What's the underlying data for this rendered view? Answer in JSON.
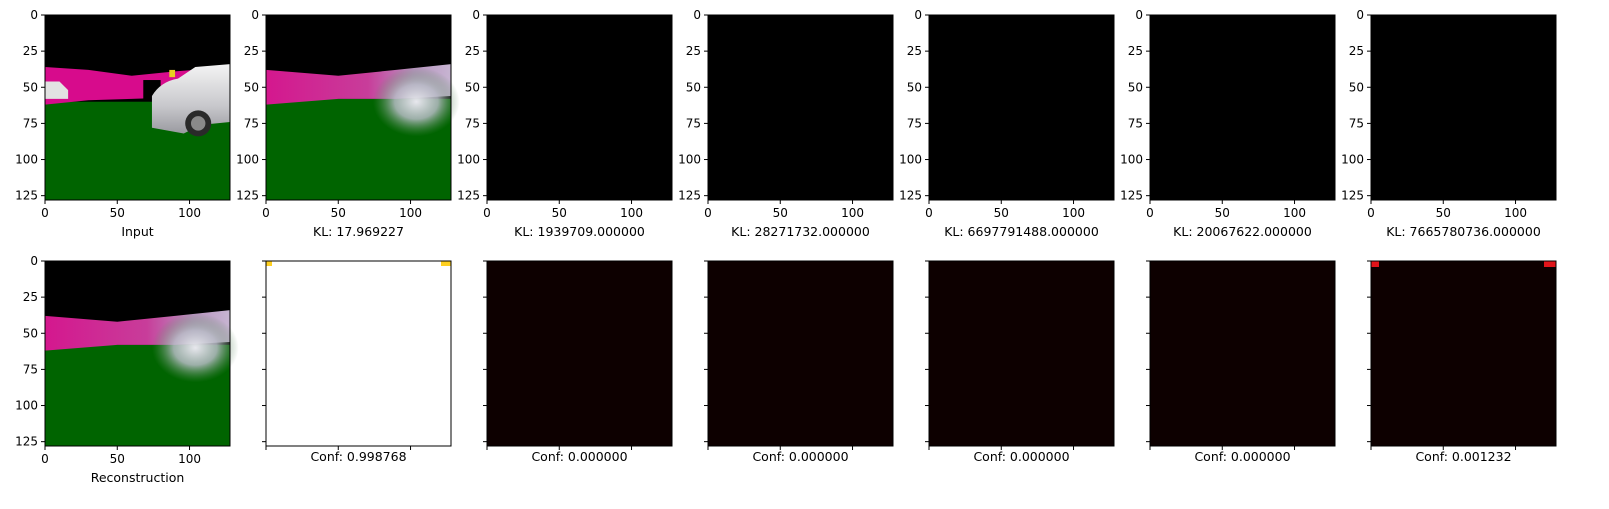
{
  "chart_data": [
    {
      "type": "image",
      "content": "scene-input",
      "caption": "Input",
      "x_ticks": [
        "0",
        "50",
        "100"
      ],
      "y_ticks": [
        "0",
        "25",
        "50",
        "75",
        "100",
        "125"
      ],
      "xlim": [
        0,
        128
      ],
      "ylim": [
        128,
        0
      ]
    },
    {
      "type": "image",
      "content": "scene-reconstruction",
      "caption": "KL: 17.969227",
      "x_ticks": [
        "0",
        "50",
        "100"
      ],
      "y_ticks": [
        "0",
        "25",
        "50",
        "75",
        "100",
        "125"
      ],
      "xlim": [
        0,
        128
      ],
      "ylim": [
        128,
        0
      ]
    },
    {
      "type": "image",
      "content": "black",
      "caption": "KL: 1939709.000000",
      "x_ticks": [
        "0",
        "50",
        "100"
      ],
      "y_ticks": [
        "0",
        "25",
        "50",
        "75",
        "100",
        "125"
      ],
      "xlim": [
        0,
        128
      ],
      "ylim": [
        128,
        0
      ]
    },
    {
      "type": "image",
      "content": "black",
      "caption": "KL: 28271732.000000",
      "x_ticks": [
        "0",
        "50",
        "100"
      ],
      "y_ticks": [
        "0",
        "25",
        "50",
        "75",
        "100",
        "125"
      ],
      "xlim": [
        0,
        128
      ],
      "ylim": [
        128,
        0
      ]
    },
    {
      "type": "image",
      "content": "black",
      "caption": "KL: 6697791488.000000",
      "x_ticks": [
        "0",
        "50",
        "100"
      ],
      "y_ticks": [
        "0",
        "25",
        "50",
        "75",
        "100",
        "125"
      ],
      "xlim": [
        0,
        128
      ],
      "ylim": [
        128,
        0
      ]
    },
    {
      "type": "image",
      "content": "black",
      "caption": "KL: 20067622.000000",
      "x_ticks": [
        "0",
        "50",
        "100"
      ],
      "y_ticks": [
        "0",
        "25",
        "50",
        "75",
        "100",
        "125"
      ],
      "xlim": [
        0,
        128
      ],
      "ylim": [
        128,
        0
      ]
    },
    {
      "type": "image",
      "content": "black",
      "caption": "KL: 7665780736.000000",
      "x_ticks": [
        "0",
        "50",
        "100"
      ],
      "y_ticks": [
        "0",
        "25",
        "50",
        "75",
        "100",
        "125"
      ],
      "xlim": [
        0,
        128
      ],
      "ylim": [
        128,
        0
      ]
    },
    {
      "type": "image",
      "content": "scene-reconstruction",
      "caption": "Reconstruction",
      "x_ticks": [
        "0",
        "50",
        "100"
      ],
      "y_ticks": [
        "0",
        "25",
        "50",
        "75",
        "100",
        "125"
      ],
      "xlim": [
        0,
        128
      ],
      "ylim": [
        128,
        0
      ]
    },
    {
      "type": "heatmap",
      "content": "confidence",
      "caption": "Conf: 0.998768",
      "confidence": 0.998768,
      "fill_color": "#ffffff",
      "hot_color": "#ffd020",
      "tick_labels": false
    },
    {
      "type": "heatmap",
      "content": "confidence",
      "caption": "Conf: 0.000000",
      "confidence": 0.0,
      "fill_color": "#0d0000",
      "tick_labels": false
    },
    {
      "type": "heatmap",
      "content": "confidence",
      "caption": "Conf: 0.000000",
      "confidence": 0.0,
      "fill_color": "#0d0000",
      "tick_labels": false
    },
    {
      "type": "heatmap",
      "content": "confidence",
      "caption": "Conf: 0.000000",
      "confidence": 0.0,
      "fill_color": "#0d0000",
      "tick_labels": false
    },
    {
      "type": "heatmap",
      "content": "confidence",
      "caption": "Conf: 0.000000",
      "confidence": 0.0,
      "fill_color": "#0d0000",
      "tick_labels": false
    },
    {
      "type": "heatmap",
      "content": "confidence",
      "caption": "Conf: 0.001232",
      "confidence": 0.001232,
      "fill_color": "#0d0000",
      "hot_color": "#e0141a",
      "tick_labels": false
    }
  ]
}
